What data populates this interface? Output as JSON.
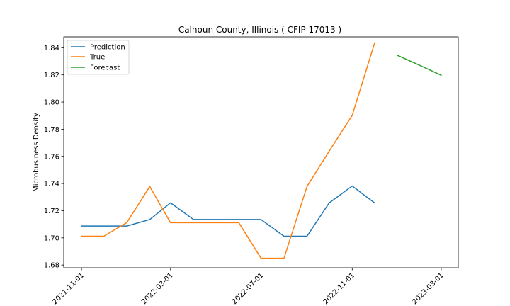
{
  "chart_data": {
    "type": "line",
    "title": "Calhoun County, Illinois ( CFIP 17013 )",
    "xlabel": "",
    "ylabel": "Microbusiness Density",
    "ylim": [
      1.678,
      1.848
    ],
    "yticks": [
      1.68,
      1.7,
      1.72,
      1.74,
      1.76,
      1.78,
      1.8,
      1.82,
      1.84
    ],
    "ytick_labels": [
      "1.68",
      "1.70",
      "1.72",
      "1.74",
      "1.76",
      "1.78",
      "1.80",
      "1.82",
      "1.84"
    ],
    "xlim": [
      "2021-10-08",
      "2023-03-24"
    ],
    "xticks": [
      "2021-11-01",
      "2022-03-01",
      "2022-07-01",
      "2022-11-01",
      "2023-03-01"
    ],
    "grid": false,
    "legend_placement": "upper-left",
    "series": [
      {
        "name": "Prediction",
        "color": "#1f77b4",
        "x": [
          "2021-11-01",
          "2021-12-01",
          "2022-01-01",
          "2022-02-01",
          "2022-03-01",
          "2022-04-01",
          "2022-05-01",
          "2022-06-01",
          "2022-07-01",
          "2022-08-01",
          "2022-09-01",
          "2022-10-01",
          "2022-11-01",
          "2022-12-01"
        ],
        "values": [
          1.7087,
          1.7087,
          1.7087,
          1.7135,
          1.7258,
          1.7135,
          1.7135,
          1.7135,
          1.7135,
          1.7012,
          1.7012,
          1.7258,
          1.7382,
          1.7258
        ]
      },
      {
        "name": "True",
        "color": "#ff7f0e",
        "x": [
          "2021-11-01",
          "2021-12-01",
          "2022-01-01",
          "2022-02-01",
          "2022-03-01",
          "2022-04-01",
          "2022-05-01",
          "2022-06-01",
          "2022-07-01",
          "2022-08-01",
          "2022-09-01",
          "2022-10-01",
          "2022-11-01",
          "2022-12-01"
        ],
        "values": [
          1.7012,
          1.7012,
          1.7112,
          1.7378,
          1.7112,
          1.7112,
          1.7112,
          1.7112,
          1.685,
          1.685,
          1.7378,
          1.7639,
          1.7902,
          1.8431
        ]
      },
      {
        "name": "Forecast",
        "color": "#2ca02c",
        "x": [
          "2023-01-01",
          "2023-02-01",
          "2023-03-01"
        ],
        "values": [
          1.8344,
          1.8268,
          1.8197
        ]
      }
    ]
  }
}
